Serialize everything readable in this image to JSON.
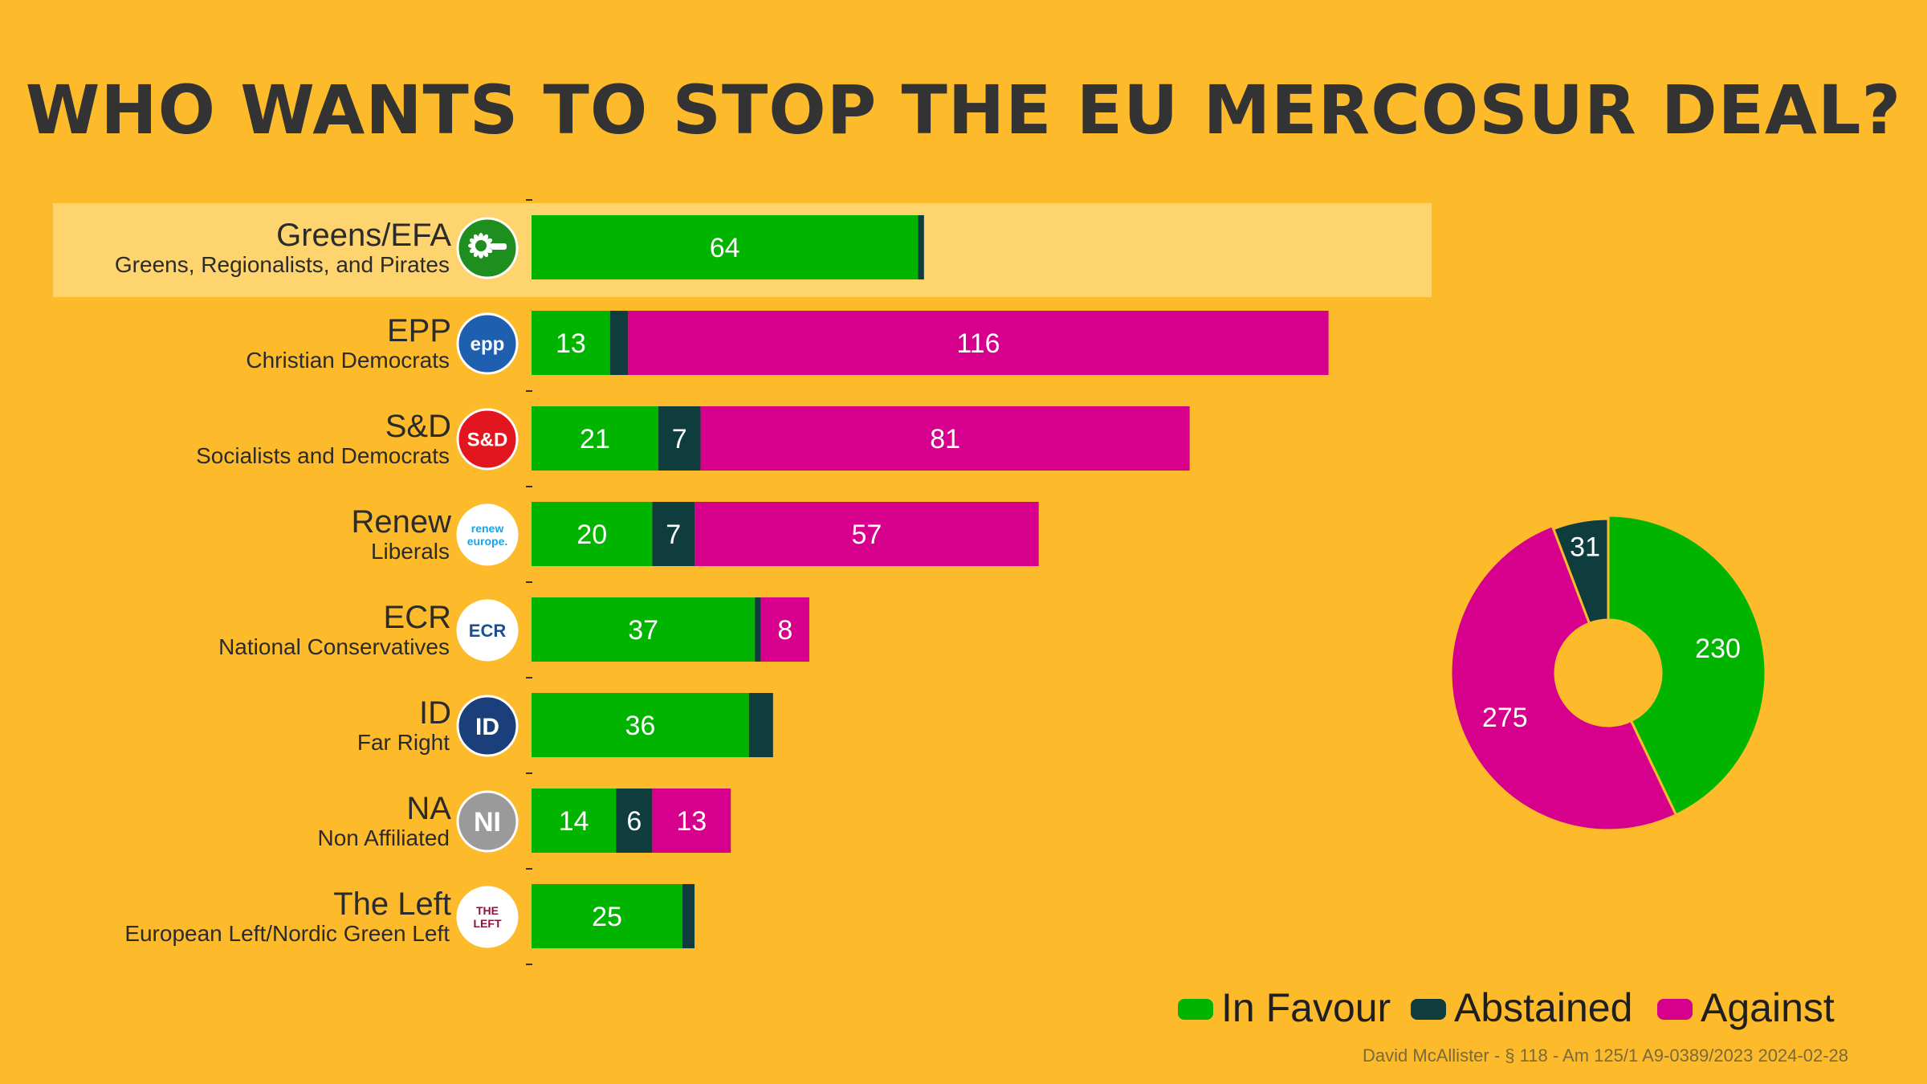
{
  "header": {
    "title": "WHO WANTS TO STOP THE EU MERCOSUR DEAL?"
  },
  "footer": {
    "note": "David McAllister - § 118 - Am 125/1 A9-0389/2023 2024-02-28"
  },
  "colors": {
    "background": "#FDBB2B",
    "in_favour": "#00B400",
    "abstained": "#0F3C3C",
    "against": "#D6008C",
    "highlight": "#FDD46E"
  },
  "chart_data": [
    {
      "type": "bar",
      "orientation": "horizontal",
      "stacked": true,
      "categories": [
        "Greens/EFA",
        "EPP",
        "S&D",
        "Renew",
        "ECR",
        "ID",
        "NA",
        "The Left"
      ],
      "subtitles": [
        "Greens, Regionalists, and Pirates",
        "Christian Democrats",
        "Socialists and Democrats",
        "Liberals",
        "National Conservatives",
        "Far Right",
        "Non Affiliated",
        "European Left/Nordic Green Left"
      ],
      "logos": [
        {
          "icon": "greens-efa-logo-icon",
          "text": ""
        },
        {
          "icon": "epp-logo-icon",
          "text": "epp"
        },
        {
          "icon": "s-and-d-logo-icon",
          "text": "S&D"
        },
        {
          "icon": "renew-europe-logo-icon",
          "text": "renew europe."
        },
        {
          "icon": "ecr-group-logo-icon",
          "text": "ECR"
        },
        {
          "icon": "id-group-logo-icon",
          "text": "ID"
        },
        {
          "icon": "non-inscrits-logo-icon",
          "text": "NI"
        },
        {
          "icon": "the-left-logo-icon",
          "text": "THE LEFT"
        }
      ],
      "highlighted_category": "Greens/EFA",
      "series": [
        {
          "name": "In Favour",
          "values": [
            64,
            13,
            21,
            20,
            37,
            36,
            14,
            25
          ]
        },
        {
          "name": "Abstained",
          "values": [
            1,
            3,
            7,
            7,
            1,
            4,
            6,
            2
          ]
        },
        {
          "name": "Against",
          "values": [
            0,
            116,
            81,
            57,
            8,
            0,
            13,
            0
          ]
        }
      ],
      "xlim": [
        0,
        134
      ],
      "legend": "bottom-right"
    },
    {
      "type": "pie",
      "donut": true,
      "labels": [
        "In Favour",
        "Against",
        "Abstained"
      ],
      "values": [
        230,
        275,
        31
      ]
    }
  ]
}
